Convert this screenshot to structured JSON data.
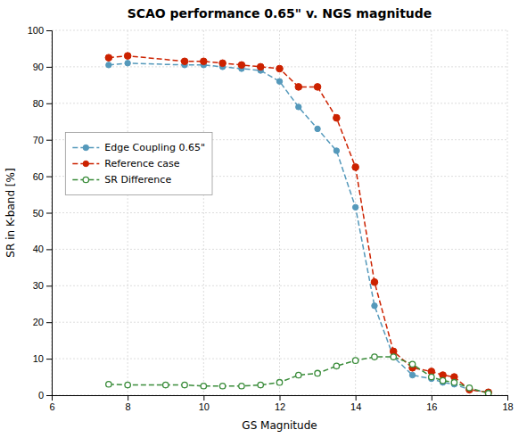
{
  "chart_data": {
    "type": "line",
    "title": "SCAO performance 0.65\" v. NGS magnitude",
    "xlabel": "GS Magnitude",
    "ylabel": "SR in K-band [%]",
    "xlim": [
      6,
      18
    ],
    "ylim": [
      0,
      100
    ],
    "xticks": [
      6,
      8,
      10,
      12,
      14,
      16,
      18
    ],
    "yticks": [
      0,
      10,
      20,
      30,
      40,
      50,
      60,
      70,
      80,
      90,
      100
    ],
    "grid": true,
    "legend": "upper left",
    "series": [
      {
        "name": "Edge Coupling 0.65\"",
        "color": "#5599bb",
        "marker": "circle",
        "line_style": "dashed",
        "x": [
          7.5,
          8.0,
          9.5,
          10.0,
          10.5,
          11.0,
          11.5,
          12.0,
          12.5,
          13.0,
          13.5,
          14.0,
          14.5,
          15.0,
          15.5,
          16.0,
          16.3,
          16.6,
          17.0,
          17.5
        ],
        "values": [
          90.5,
          91.0,
          90.5,
          90.5,
          90.0,
          89.5,
          89.0,
          86.0,
          79.0,
          73.0,
          67.0,
          51.5,
          24.5,
          10.5,
          5.5,
          4.5,
          3.5,
          3.0,
          1.5,
          0.8
        ]
      },
      {
        "name": "Reference case",
        "color": "#cc2200",
        "marker": "circle",
        "line_style": "dashed",
        "x": [
          7.5,
          8.0,
          9.5,
          10.0,
          10.5,
          11.0,
          11.5,
          12.0,
          12.5,
          13.0,
          13.5,
          14.0,
          14.5,
          15.0,
          15.5,
          16.0,
          16.3,
          16.6,
          17.0,
          17.5
        ],
        "values": [
          92.5,
          93.0,
          91.5,
          91.5,
          91.0,
          90.5,
          90.0,
          89.5,
          84.5,
          84.5,
          76.0,
          62.5,
          31.0,
          12.0,
          7.5,
          6.5,
          5.5,
          5.0,
          1.5,
          0.8
        ]
      },
      {
        "name": "SR Difference",
        "color": "#3a8c3a",
        "marker": "open-circle",
        "line_style": "dashed",
        "x": [
          7.5,
          8.0,
          9.0,
          9.5,
          10.0,
          10.5,
          11.0,
          11.5,
          12.0,
          12.5,
          13.0,
          13.5,
          14.0,
          14.5,
          15.0,
          15.5,
          16.0,
          16.3,
          16.6,
          17.0,
          17.5
        ],
        "values": [
          3.0,
          2.8,
          2.8,
          2.8,
          2.5,
          2.5,
          2.5,
          2.8,
          3.5,
          5.5,
          6.0,
          8.0,
          9.5,
          10.5,
          10.5,
          8.5,
          5.0,
          4.0,
          3.5,
          2.0,
          0.5
        ]
      }
    ]
  }
}
